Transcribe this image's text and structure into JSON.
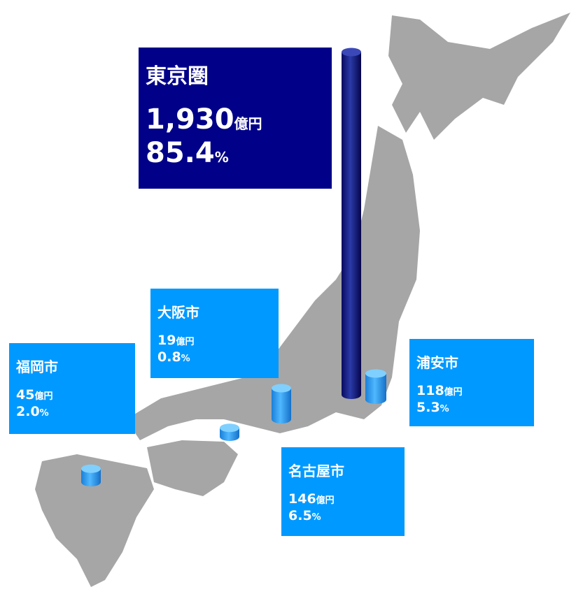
{
  "amount_unit": "億円",
  "share_unit": "%",
  "regions": [
    {
      "name": "東京圏",
      "value": 1930,
      "value_label": "1,930",
      "share": "85.4"
    },
    {
      "name": "浦安市",
      "value": 118,
      "value_label": "118",
      "share": "5.3"
    },
    {
      "name": "名古屋市",
      "value": 146,
      "value_label": "146",
      "share": "6.5"
    },
    {
      "name": "大阪市",
      "value": 19,
      "value_label": "19",
      "share": "0.8"
    },
    {
      "name": "福岡市",
      "value": 45,
      "value_label": "45",
      "share": "2.0"
    }
  ]
}
